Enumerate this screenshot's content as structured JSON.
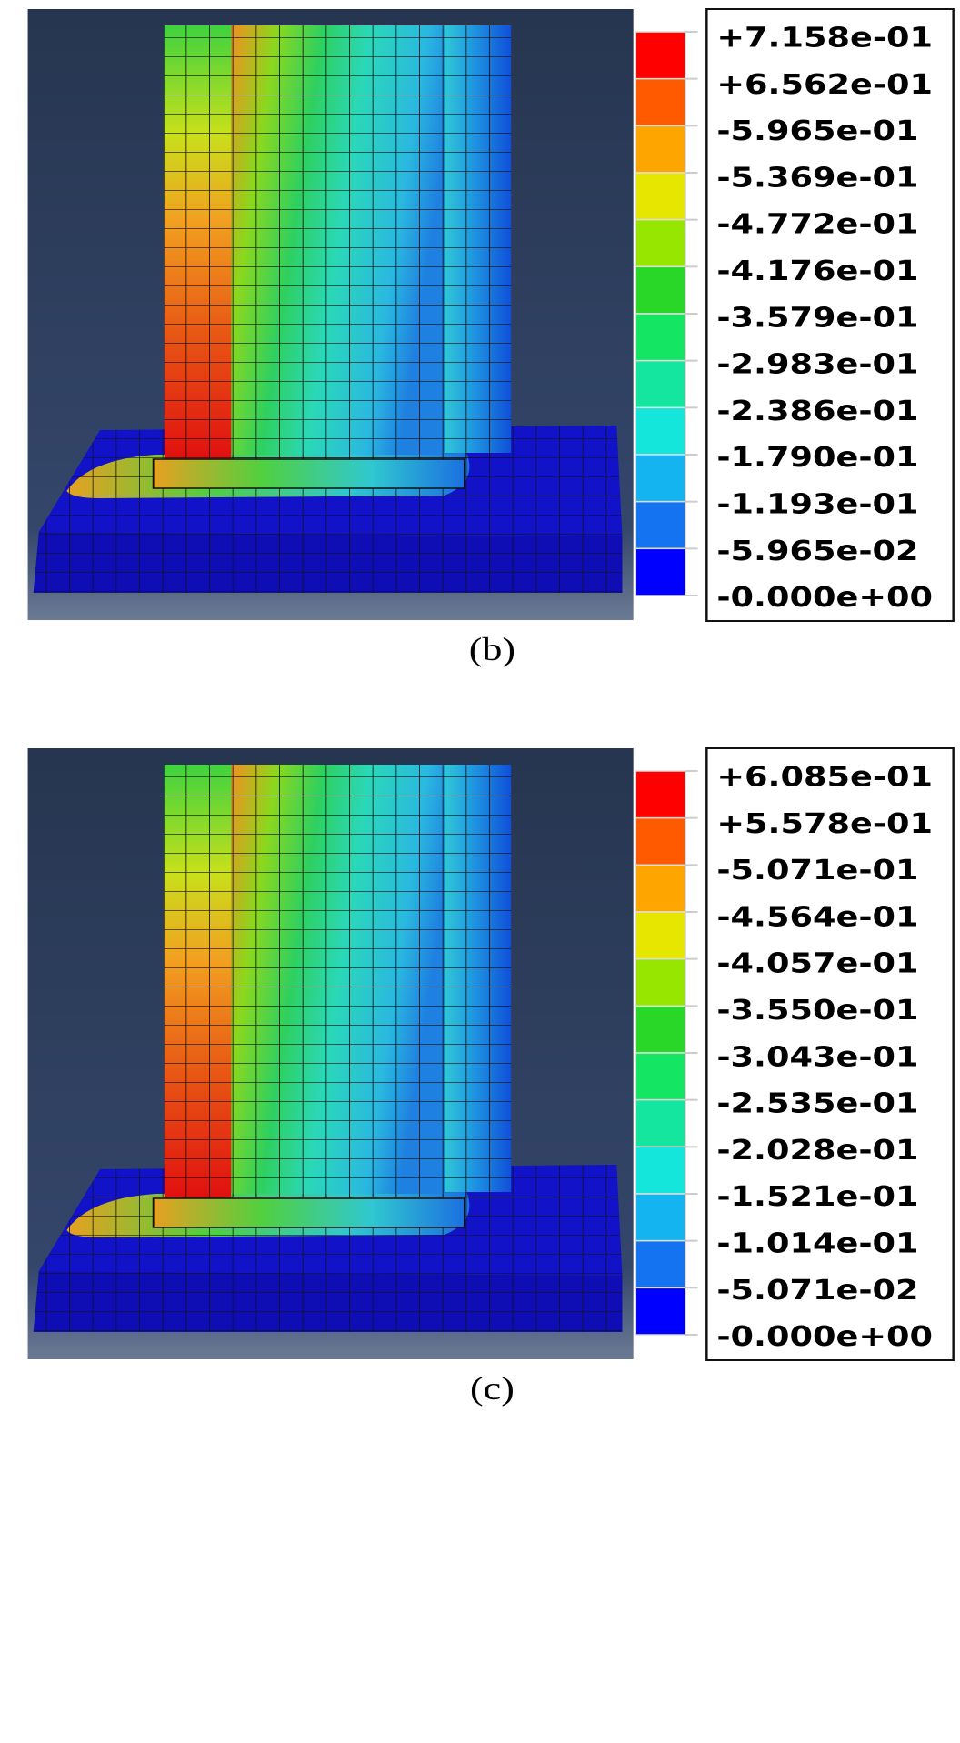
{
  "panels": [
    {
      "legend": [
        "+7.158e-01",
        "+6.562e-01",
        "-5.965e-01",
        "-5.369e-01",
        "-4.772e-01",
        "-4.176e-01",
        "-3.579e-01",
        "-2.983e-01",
        "-2.386e-01",
        "-1.790e-01",
        "-1.193e-01",
        "-5.965e-02",
        "-0.000e+00"
      ],
      "caption": "(b)"
    },
    {
      "legend": [
        "+6.085e-01",
        "+5.578e-01",
        "-5.071e-01",
        "-4.564e-01",
        "-4.057e-01",
        "-3.550e-01",
        "-3.043e-01",
        "-2.535e-01",
        "-2.028e-01",
        "-1.521e-01",
        "-1.014e-01",
        "-5.071e-02",
        "-0.000e+00"
      ],
      "caption": "(c)"
    }
  ]
}
